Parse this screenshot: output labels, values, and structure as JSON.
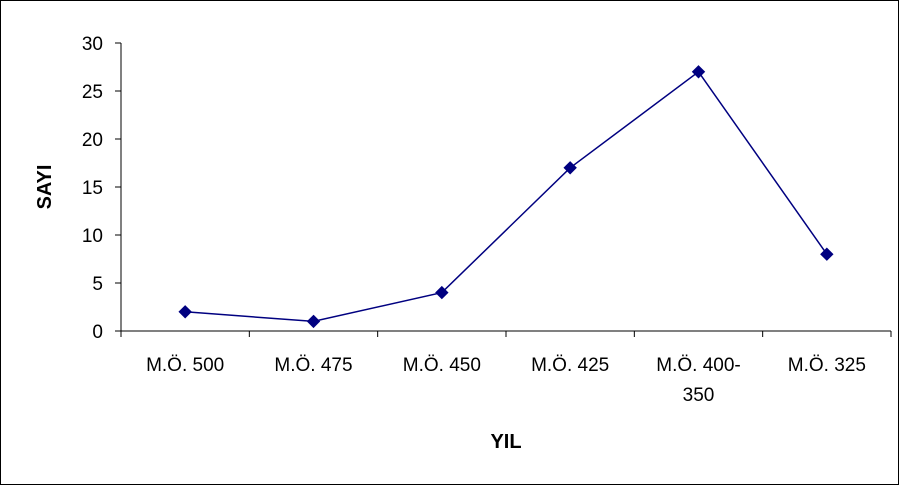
{
  "chart_data": {
    "type": "line",
    "categories": [
      [
        "M.Ö. 500"
      ],
      [
        "M.Ö. 475"
      ],
      [
        "M.Ö. 450"
      ],
      [
        "M.Ö. 425"
      ],
      [
        "M.Ö. 400-",
        "350"
      ],
      [
        "M.Ö. 325"
      ]
    ],
    "series": [
      {
        "values": [
          2,
          1,
          4,
          17,
          27,
          8
        ],
        "color": "#000080",
        "marker": "diamond"
      }
    ],
    "title": "",
    "xlabel": "YIL",
    "ylabel": "SAYI",
    "ylim": [
      0,
      30
    ],
    "yticks": [
      0,
      5,
      10,
      15,
      20,
      25,
      30
    ],
    "grid": false,
    "legend": "none"
  }
}
